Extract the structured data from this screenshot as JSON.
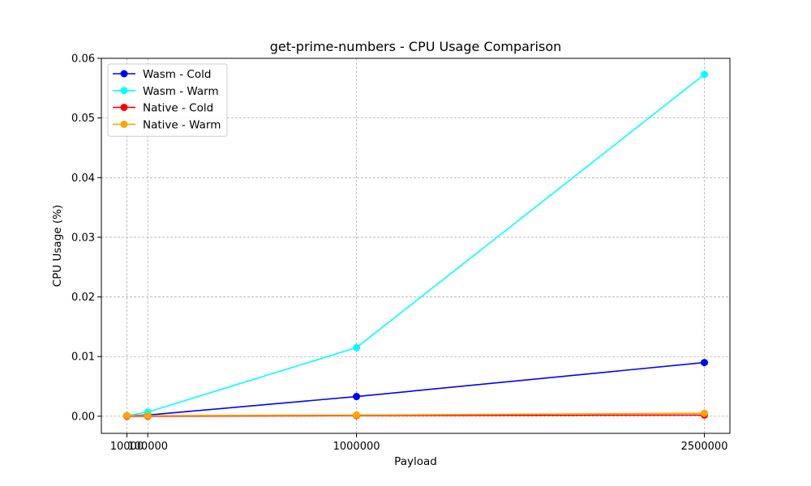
{
  "chart_data": {
    "type": "line",
    "title": "get-prime-numbers - CPU Usage Comparison",
    "xlabel": "Payload",
    "ylabel": "CPU Usage (%)",
    "x": [
      10000,
      100000,
      1000000,
      2500000
    ],
    "x_tick_labels": [
      "10000",
      "100000",
      "1000000",
      "2500000"
    ],
    "xlim": [
      -100000,
      2610000
    ],
    "ylim": [
      -0.00287,
      0.06
    ],
    "y_ticks": [
      0.0,
      0.01,
      0.02,
      0.03,
      0.04,
      0.05,
      0.06
    ],
    "y_tick_labels": [
      "0.00",
      "0.01",
      "0.02",
      "0.03",
      "0.04",
      "0.05",
      "0.06"
    ],
    "grid": true,
    "legend_position": "top-left",
    "series": [
      {
        "name": "Wasm - Cold",
        "color": "#0000ff",
        "values": [
          0.0001,
          0.0002,
          0.0033,
          0.009
        ]
      },
      {
        "name": "Wasm - Warm",
        "color": "#00ffff",
        "values": [
          0.0001,
          0.0007,
          0.0115,
          0.0573
        ]
      },
      {
        "name": "Native - Cold",
        "color": "#ff0000",
        "values": [
          0.0,
          0.0,
          0.0001,
          0.0002
        ]
      },
      {
        "name": "Native - Warm",
        "color": "#ffa500",
        "values": [
          0.0001,
          0.0001,
          0.0002,
          0.0005
        ]
      }
    ]
  }
}
